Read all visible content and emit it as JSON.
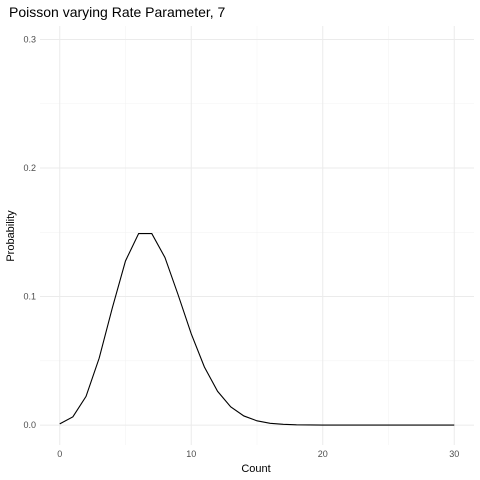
{
  "chart_data": {
    "type": "line",
    "title": "Poisson varying Rate Parameter, 7",
    "xlabel": "Count",
    "ylabel": "Probability",
    "xlim": [
      -1.5,
      31.5
    ],
    "ylim": [
      -0.0155,
      0.3105
    ],
    "x_major_ticks": [
      0,
      10,
      20,
      30
    ],
    "x_minor_ticks": [
      5,
      15,
      25
    ],
    "y_major_ticks": [
      0.0,
      0.1,
      0.2,
      0.3
    ],
    "y_minor_ticks": [
      0.05,
      0.15,
      0.25
    ],
    "x_tick_labels": [
      "0",
      "10",
      "20",
      "30"
    ],
    "y_tick_labels": [
      "0.0",
      "0.1",
      "0.2",
      "0.3"
    ],
    "grid": true,
    "x": [
      0,
      1,
      2,
      3,
      4,
      5,
      6,
      7,
      8,
      9,
      10,
      11,
      12,
      13,
      14,
      15,
      16,
      17,
      18,
      19,
      20,
      21,
      22,
      23,
      24,
      25,
      26,
      27,
      28,
      29,
      30
    ],
    "series": [
      {
        "values": [
          0.0009,
          0.0064,
          0.0223,
          0.0521,
          0.0912,
          0.1277,
          0.149,
          0.149,
          0.1304,
          0.1014,
          0.071,
          0.0452,
          0.0263,
          0.0142,
          0.0071,
          0.0033,
          0.0014,
          0.0006,
          0.0002,
          0.0001,
          0.0,
          0.0,
          0.0,
          0.0,
          0.0,
          0.0,
          0.0,
          0.0,
          0.0,
          0.0,
          0.0
        ],
        "color": "#000000"
      }
    ]
  }
}
